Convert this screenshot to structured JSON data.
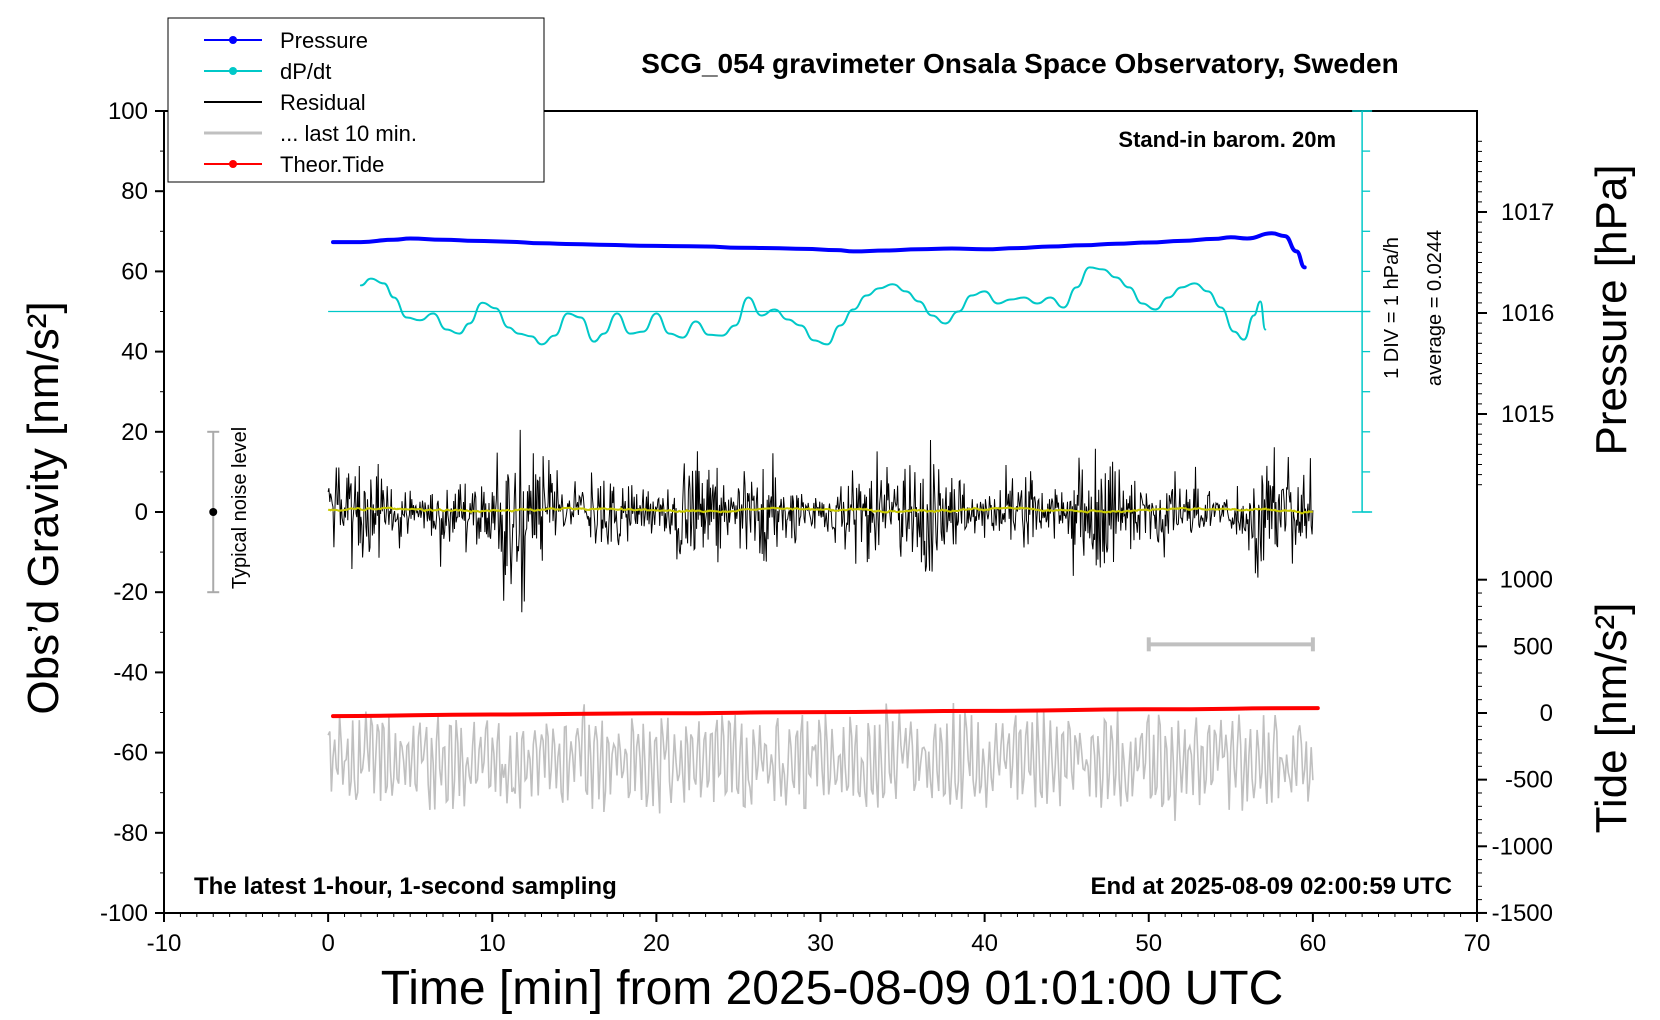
{
  "chart_data": {
    "type": "line",
    "title": "SCG_054 gravimeter Onsala Space Observatory, Sweden",
    "xlabel": "Time [min] from 2025-08-09 01:01:00 UTC",
    "ylabel_left": "Obs’d Gravity [nm/s²]",
    "ylabel_right_top": "Pressure [hPa]",
    "ylabel_right_bottom": "Tide [nm/s²]",
    "xlim": [
      -10,
      70
    ],
    "ylim": [
      -100,
      100
    ],
    "x_ticks": [
      "-10",
      "0",
      "10",
      "20",
      "30",
      "40",
      "50",
      "60",
      "70"
    ],
    "y_ticks": [
      "-100",
      "-80",
      "-60",
      "-40",
      "-20",
      "0",
      "20",
      "40",
      "60",
      "80",
      "100"
    ],
    "pressure_ticks": [
      {
        "label": "1017",
        "value": 1017
      },
      {
        "label": "1016",
        "value": 1016
      },
      {
        "label": "1015",
        "value": 1015
      }
    ],
    "tide_ticks": [
      {
        "label": "1000",
        "value": 1000
      },
      {
        "label": "500",
        "value": 500
      },
      {
        "label": "0",
        "value": 0
      },
      {
        "label": "-500",
        "value": -500
      },
      {
        "label": "-1000",
        "value": -1000
      },
      {
        "label": "-1500",
        "value": -1500
      }
    ],
    "annotations": {
      "stand_in": "Stand-in barom. 20m",
      "scale_div": "1 DIV = 1 hPa/h",
      "average": "average = 0.0244",
      "noise": "Typical noise level",
      "bottom_left": "The latest 1-hour, 1-second sampling",
      "bottom_right": "End at 2025-08-09 02:00:59 UTC"
    },
    "legend": {
      "position": "top-left",
      "entries": [
        {
          "label": "Pressure",
          "color": "#0000ff",
          "marker": true
        },
        {
          "label": "dP/dt",
          "color": "#00c8c8",
          "marker": true
        },
        {
          "label": "Residual",
          "color": "#000000",
          "marker": false
        },
        {
          "label": "... last 10 min.",
          "color": "#c0c0c0",
          "marker": false
        },
        {
          "label": "Theor.Tide",
          "color": "#ff0000",
          "marker": true
        }
      ]
    },
    "series": [
      {
        "name": "Pressure",
        "color": "#0000ff",
        "x": [
          0.3,
          2,
          4,
          5,
          7,
          9,
          11,
          13,
          15,
          17,
          19,
          21,
          23,
          25,
          27,
          29,
          31,
          32,
          34,
          36,
          38,
          40,
          42,
          44,
          46,
          48,
          50,
          52,
          54,
          55,
          56,
          57.5,
          58.3,
          59,
          59.5
        ],
        "y": [
          67.3,
          67.3,
          67.9,
          68.2,
          67.9,
          67.6,
          67.4,
          67.0,
          66.8,
          66.6,
          66.4,
          66.3,
          66.2,
          65.9,
          65.8,
          65.6,
          65.3,
          65.0,
          65.2,
          65.5,
          65.7,
          65.5,
          65.8,
          66.2,
          66.5,
          66.9,
          67.2,
          67.6,
          68.1,
          68.5,
          68.2,
          69.5,
          68.8,
          65.0,
          61.0
        ]
      },
      {
        "name": "dP/dt",
        "color": "#00c8c8",
        "x": [
          2,
          2.6,
          3.4,
          4.0,
          4.8,
          5.6,
          6.4,
          7.2,
          8.0,
          8.6,
          9.4,
          10.2,
          11.0,
          11.6,
          12.4,
          13.0,
          13.8,
          14.6,
          15.4,
          16.2,
          16.8,
          17.6,
          18.4,
          19.2,
          20.0,
          20.8,
          21.6,
          22.4,
          23.2,
          24.0,
          24.8,
          25.6,
          26.4,
          27.2,
          28.0,
          28.8,
          29.6,
          30.4,
          31.2,
          32.0,
          32.8,
          33.6,
          34.4,
          35.2,
          36.0,
          36.8,
          37.6,
          38.4,
          39.2,
          40.0,
          40.8,
          41.6,
          42.4,
          43.2,
          44.0,
          44.8,
          45.6,
          46.4,
          47.2,
          48.0,
          48.8,
          49.6,
          50.4,
          51.2,
          52.0,
          52.8,
          53.6,
          54.4,
          55.2,
          55.8,
          56.4,
          56.8,
          57.1
        ],
        "y": [
          56.5,
          58.2,
          57.0,
          53.5,
          48.5,
          47.8,
          49.5,
          45.5,
          44.5,
          47.0,
          52.2,
          50.8,
          46.0,
          44.5,
          43.8,
          41.8,
          44.0,
          49.5,
          48.5,
          42.5,
          44.5,
          49.5,
          44.5,
          45.0,
          49.5,
          44.5,
          43.5,
          47.5,
          44.2,
          44.0,
          46.5,
          53.5,
          49.0,
          50.5,
          48.0,
          46.5,
          42.8,
          41.8,
          46.5,
          50.5,
          54.0,
          55.8,
          56.8,
          55.0,
          52.5,
          49.0,
          47.0,
          50.0,
          54.0,
          55.0,
          52.0,
          53.0,
          53.5,
          52.0,
          53.5,
          51.0,
          56.0,
          61.0,
          60.5,
          58.5,
          56.0,
          52.0,
          50.5,
          53.5,
          56.0,
          57.0,
          55.0,
          51.0,
          45.0,
          43.0,
          49.0,
          52.5,
          45.5
        ]
      },
      {
        "name": "Residual",
        "color": "#000000",
        "x_range": [
          0,
          60
        ],
        "y_range": [
          -25,
          25
        ],
        "annotation": "noisy 1-second residual around 0 nm/s²"
      },
      {
        "name": "Residual (smoothed)",
        "color": "#c8c800",
        "x_range": [
          0,
          60
        ],
        "y_approx": 0.5
      },
      {
        "name": "... last 10 min.",
        "color": "#c0c0c0",
        "x_range": [
          0,
          60
        ],
        "y_range": [
          -77,
          -40
        ],
        "y_center": -62
      },
      {
        "name": "Theor.Tide",
        "color": "#ff0000",
        "x": [
          0.3,
          10,
          20,
          30,
          40,
          50,
          60.3
        ],
        "y": [
          -50.9,
          -50.5,
          -50.2,
          -49.9,
          -49.6,
          -49.2,
          -48.9
        ]
      }
    ],
    "noise_bar": {
      "x": -7,
      "y_low": -20,
      "y_high": 20,
      "center": 0
    },
    "last10_bar": {
      "x_start": 50,
      "x_end": 60,
      "y": -33
    },
    "dpdt_baseline": {
      "y": 50,
      "x_start": 0,
      "x_end": 63.5
    },
    "scale_bar": {
      "x": 63,
      "y_low": 0,
      "y_high": 100
    }
  }
}
